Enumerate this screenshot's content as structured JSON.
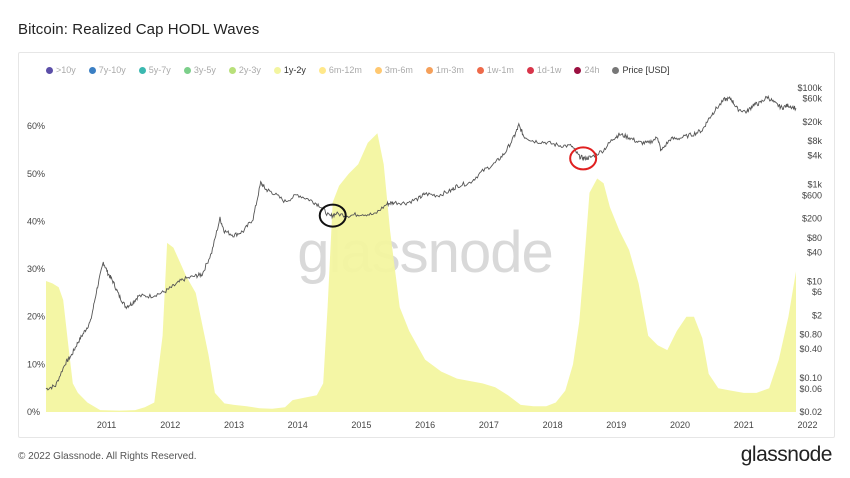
{
  "page": {
    "title": "Bitcoin: Realized Cap HODL Waves",
    "copyright": "© 2022 Glassnode. All Rights Reserved.",
    "brand": "glassnode",
    "watermark": "glassnode"
  },
  "legend": [
    {
      "label": ">10y",
      "color": "#5b4ea8",
      "active": false
    },
    {
      "label": "7y-10y",
      "color": "#3b7fc4",
      "active": false
    },
    {
      "label": "5y-7y",
      "color": "#3bb8b0",
      "active": false
    },
    {
      "label": "3y-5y",
      "color": "#7ccf8a",
      "active": false
    },
    {
      "label": "2y-3y",
      "color": "#b8e07a",
      "active": false
    },
    {
      "label": "1y-2y",
      "color": "#f3f5a0",
      "active": true
    },
    {
      "label": "6m-12m",
      "color": "#ffe88a",
      "active": false
    },
    {
      "label": "3m-6m",
      "color": "#ffc870",
      "active": false
    },
    {
      "label": "1m-3m",
      "color": "#f5a05a",
      "active": false
    },
    {
      "label": "1w-1m",
      "color": "#ee6a4a",
      "active": false
    },
    {
      "label": "1d-1w",
      "color": "#d8354a",
      "active": false
    },
    {
      "label": "24h",
      "color": "#9b1040",
      "active": false
    },
    {
      "label": "Price [USD]",
      "color": "#777777",
      "active": true
    }
  ],
  "chart_data": {
    "type": "area",
    "x_ticks": [
      "2011",
      "2012",
      "2013",
      "2014",
      "2015",
      "2016",
      "2017",
      "2018",
      "2019",
      "2020",
      "2021",
      "2022"
    ],
    "y_left_ticks": [
      "0%",
      "10%",
      "20%",
      "30%",
      "40%",
      "50%",
      "60%"
    ],
    "y_left_range": [
      0,
      0.68
    ],
    "y_right_ticks": [
      "$0.02",
      "$0.06",
      "$0.10",
      "$0.40",
      "$0.80",
      "$2",
      "$6",
      "$10",
      "$40",
      "$80",
      "$200",
      "$600",
      "$1k",
      "$4k",
      "$8k",
      "$20k",
      "$60k",
      "$100k"
    ],
    "y_right_scale": "log",
    "y_right_range": [
      0.02,
      100000
    ],
    "series": [
      {
        "name": "1y-2y",
        "color": "#f3f5a0",
        "points": [
          [
            2010.55,
            0.275
          ],
          [
            2010.65,
            0.27
          ],
          [
            2010.75,
            0.262
          ],
          [
            2010.82,
            0.235
          ],
          [
            2010.9,
            0.14
          ],
          [
            2010.97,
            0.06
          ],
          [
            2011.05,
            0.04
          ],
          [
            2011.2,
            0.02
          ],
          [
            2011.4,
            0.004
          ],
          [
            2011.7,
            0.003
          ],
          [
            2011.95,
            0.004
          ],
          [
            2012.1,
            0.01
          ],
          [
            2012.25,
            0.02
          ],
          [
            2012.38,
            0.16
          ],
          [
            2012.45,
            0.355
          ],
          [
            2012.55,
            0.345
          ],
          [
            2012.65,
            0.315
          ],
          [
            2012.75,
            0.285
          ],
          [
            2012.9,
            0.25
          ],
          [
            2013.0,
            0.185
          ],
          [
            2013.1,
            0.12
          ],
          [
            2013.2,
            0.04
          ],
          [
            2013.35,
            0.018
          ],
          [
            2013.5,
            0.015
          ],
          [
            2013.7,
            0.012
          ],
          [
            2013.9,
            0.008
          ],
          [
            2014.1,
            0.007
          ],
          [
            2014.3,
            0.01
          ],
          [
            2014.42,
            0.025
          ],
          [
            2014.6,
            0.03
          ],
          [
            2014.8,
            0.035
          ],
          [
            2014.9,
            0.06
          ],
          [
            2014.97,
            0.22
          ],
          [
            2015.05,
            0.44
          ],
          [
            2015.15,
            0.475
          ],
          [
            2015.3,
            0.5
          ],
          [
            2015.45,
            0.52
          ],
          [
            2015.6,
            0.565
          ],
          [
            2015.75,
            0.585
          ],
          [
            2015.85,
            0.52
          ],
          [
            2015.95,
            0.38
          ],
          [
            2016.1,
            0.22
          ],
          [
            2016.25,
            0.17
          ],
          [
            2016.5,
            0.11
          ],
          [
            2016.75,
            0.085
          ],
          [
            2017.0,
            0.07
          ],
          [
            2017.2,
            0.065
          ],
          [
            2017.4,
            0.06
          ],
          [
            2017.6,
            0.052
          ],
          [
            2017.8,
            0.035
          ],
          [
            2018.0,
            0.015
          ],
          [
            2018.2,
            0.012
          ],
          [
            2018.4,
            0.012
          ],
          [
            2018.55,
            0.02
          ],
          [
            2018.7,
            0.045
          ],
          [
            2018.82,
            0.1
          ],
          [
            2018.92,
            0.19
          ],
          [
            2019.0,
            0.32
          ],
          [
            2019.08,
            0.46
          ],
          [
            2019.2,
            0.49
          ],
          [
            2019.3,
            0.48
          ],
          [
            2019.4,
            0.43
          ],
          [
            2019.55,
            0.38
          ],
          [
            2019.7,
            0.34
          ],
          [
            2019.85,
            0.27
          ],
          [
            2020.0,
            0.16
          ],
          [
            2020.15,
            0.14
          ],
          [
            2020.3,
            0.13
          ],
          [
            2020.45,
            0.17
          ],
          [
            2020.6,
            0.2
          ],
          [
            2020.72,
            0.2
          ],
          [
            2020.85,
            0.155
          ],
          [
            2020.95,
            0.08
          ],
          [
            2021.1,
            0.05
          ],
          [
            2021.3,
            0.045
          ],
          [
            2021.5,
            0.04
          ],
          [
            2021.7,
            0.04
          ],
          [
            2021.9,
            0.05
          ],
          [
            2022.05,
            0.11
          ],
          [
            2022.2,
            0.2
          ],
          [
            2022.32,
            0.295
          ]
        ]
      },
      {
        "name": "Price [USD]",
        "color": "#555555",
        "points": [
          [
            2010.55,
            0.06
          ],
          [
            2010.7,
            0.07
          ],
          [
            2010.85,
            0.2
          ],
          [
            2010.95,
            0.3
          ],
          [
            2011.05,
            0.55
          ],
          [
            2011.15,
            0.9
          ],
          [
            2011.25,
            1.5
          ],
          [
            2011.35,
            7
          ],
          [
            2011.45,
            25
          ],
          [
            2011.52,
            15
          ],
          [
            2011.6,
            10
          ],
          [
            2011.7,
            5
          ],
          [
            2011.8,
            3
          ],
          [
            2011.9,
            3.5
          ],
          [
            2012.0,
            5
          ],
          [
            2012.2,
            5
          ],
          [
            2012.4,
            6
          ],
          [
            2012.55,
            8
          ],
          [
            2012.7,
            11
          ],
          [
            2012.9,
            13
          ],
          [
            2013.0,
            14
          ],
          [
            2013.15,
            40
          ],
          [
            2013.28,
            200
          ],
          [
            2013.35,
            110
          ],
          [
            2013.5,
            90
          ],
          [
            2013.65,
            110
          ],
          [
            2013.8,
            200
          ],
          [
            2013.92,
            1100
          ],
          [
            2014.0,
            800
          ],
          [
            2014.1,
            700
          ],
          [
            2014.3,
            450
          ],
          [
            2014.5,
            620
          ],
          [
            2014.7,
            480
          ],
          [
            2014.85,
            370
          ],
          [
            2015.0,
            220
          ],
          [
            2015.1,
            250
          ],
          [
            2015.3,
            230
          ],
          [
            2015.5,
            250
          ],
          [
            2015.7,
            240
          ],
          [
            2015.9,
            400
          ],
          [
            2016.0,
            430
          ],
          [
            2016.2,
            420
          ],
          [
            2016.4,
            520
          ],
          [
            2016.5,
            650
          ],
          [
            2016.7,
            600
          ],
          [
            2016.9,
            750
          ],
          [
            2017.0,
            950
          ],
          [
            2017.2,
            1100
          ],
          [
            2017.4,
            1900
          ],
          [
            2017.6,
            2800
          ],
          [
            2017.75,
            4500
          ],
          [
            2017.9,
            10000
          ],
          [
            2017.97,
            17000
          ],
          [
            2018.05,
            10000
          ],
          [
            2018.2,
            8000
          ],
          [
            2018.4,
            7500
          ],
          [
            2018.6,
            6500
          ],
          [
            2018.8,
            6300
          ],
          [
            2018.92,
            3800
          ],
          [
            2019.0,
            3500
          ],
          [
            2019.1,
            3700
          ],
          [
            2019.3,
            5200
          ],
          [
            2019.45,
            9000
          ],
          [
            2019.55,
            11000
          ],
          [
            2019.7,
            9500
          ],
          [
            2019.85,
            7500
          ],
          [
            2020.0,
            7200
          ],
          [
            2020.15,
            9500
          ],
          [
            2020.2,
            5000
          ],
          [
            2020.35,
            8800
          ],
          [
            2020.5,
            9200
          ],
          [
            2020.7,
            11000
          ],
          [
            2020.85,
            13500
          ],
          [
            2020.95,
            23000
          ],
          [
            2021.05,
            35000
          ],
          [
            2021.2,
            58000
          ],
          [
            2021.3,
            60000
          ],
          [
            2021.4,
            37000
          ],
          [
            2021.55,
            32000
          ],
          [
            2021.65,
            45000
          ],
          [
            2021.75,
            48000
          ],
          [
            2021.87,
            66000
          ],
          [
            2022.0,
            47000
          ],
          [
            2022.1,
            39000
          ],
          [
            2022.2,
            44000
          ],
          [
            2022.32,
            38000
          ]
        ]
      }
    ],
    "annotations": [
      {
        "type": "circle",
        "color": "#111111",
        "x": 2015.05,
        "y_price": 230
      },
      {
        "type": "circle",
        "color": "#e02020",
        "x": 2018.98,
        "y_price": 3500
      }
    ]
  }
}
